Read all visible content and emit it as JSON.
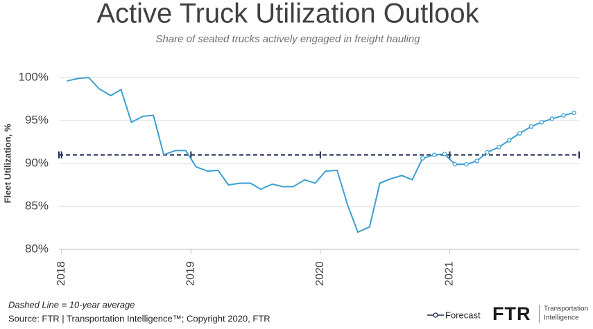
{
  "chart_data": {
    "type": "line",
    "title": "Active Truck Utilization Outlook",
    "subtitle": "Share of seated trucks actively engaged in freight hauling",
    "y_label": "Fleet Utilization, %",
    "x": [
      2018.04,
      2018.13,
      2018.21,
      2018.29,
      2018.38,
      2018.46,
      2018.54,
      2018.63,
      2018.71,
      2018.79,
      2018.88,
      2018.96,
      2019.04,
      2019.13,
      2019.21,
      2019.29,
      2019.38,
      2019.46,
      2019.54,
      2019.63,
      2019.71,
      2019.79,
      2019.88,
      2019.96,
      2020.04,
      2020.13,
      2020.21,
      2020.29,
      2020.38,
      2020.46,
      2020.54,
      2020.63,
      2020.71,
      2020.79,
      2020.88,
      2020.96,
      2021.04,
      2021.13,
      2021.21,
      2021.29,
      2021.38,
      2021.46,
      2021.54,
      2021.63,
      2021.71,
      2021.79,
      2021.88,
      2021.96
    ],
    "series": [
      {
        "color": "#3b9fd1",
        "markers": false,
        "values": [
          99.6,
          99.9,
          100.0,
          98.7,
          97.9,
          98.6,
          94.8,
          95.5,
          95.6,
          91.0,
          91.5,
          91.5,
          89.6,
          89.1,
          89.2,
          87.5,
          87.7,
          87.7,
          87.0,
          87.6,
          87.3,
          87.3,
          88.1,
          87.7,
          89.1,
          89.2,
          85.2,
          82.0,
          82.6,
          87.7,
          88.2,
          88.6,
          88.1,
          90.6,
          null,
          null,
          null,
          null,
          null,
          null,
          null,
          null,
          null,
          null,
          null,
          null,
          null,
          null
        ]
      },
      {
        "name": "Forecast",
        "color": "#3b9fd1",
        "markers": true,
        "values": [
          null,
          null,
          null,
          null,
          null,
          null,
          null,
          null,
          null,
          null,
          null,
          null,
          null,
          null,
          null,
          null,
          null,
          null,
          null,
          null,
          null,
          null,
          null,
          null,
          null,
          null,
          null,
          null,
          null,
          null,
          null,
          null,
          null,
          90.6,
          91.0,
          91.1,
          89.9,
          89.9,
          90.3,
          91.3,
          91.9,
          92.7,
          93.5,
          94.3,
          94.8,
          95.2,
          95.6,
          95.9
        ]
      }
    ],
    "reference_line": {
      "value": 91.0,
      "color": "#1c2a4a"
    },
    "annotation": "Dashed Line = 10-year average",
    "source": "Source: FTR | Transportation Intelligence™; Copyright 2020, FTR",
    "logo": {
      "text": "FTR",
      "tagline": [
        "Transportation",
        "Intelligence"
      ]
    },
    "xlim": [
      2017.98,
      2022.0
    ],
    "xticks": [
      2018,
      2019,
      2020,
      2021
    ],
    "ylim": [
      80,
      100
    ],
    "yticks": [
      {
        "value": 80,
        "label": "80%"
      },
      {
        "value": 85,
        "label": "85%"
      },
      {
        "value": 90,
        "label": "90%"
      },
      {
        "value": 95,
        "label": "95%"
      },
      {
        "value": 100,
        "label": "100%"
      }
    ],
    "grid": true,
    "legend": "bottom-right"
  }
}
